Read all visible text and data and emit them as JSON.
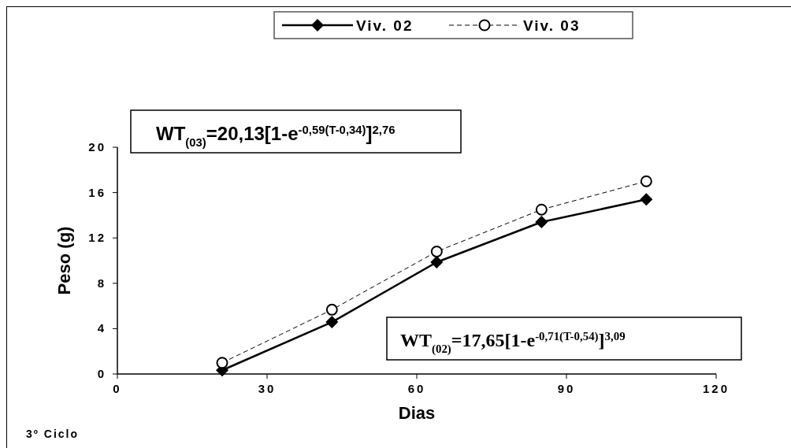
{
  "chart_data": {
    "type": "line",
    "xlabel": "Dias",
    "ylabel": "Peso (g)",
    "x": [
      21,
      43,
      64,
      85,
      106
    ],
    "series": [
      {
        "name": "Viv. 02",
        "color": "#000000",
        "values": [
          0.33,
          4.58,
          9.86,
          13.4,
          15.4
        ],
        "marker": "diamond",
        "line_style": "solid"
      },
      {
        "name": "Viv. 03",
        "color": "#000000",
        "values": [
          0.99,
          5.67,
          10.8,
          14.5,
          17.0
        ],
        "marker": "circle",
        "line_style": "dashed"
      }
    ],
    "xlim": [
      0,
      120
    ],
    "xticks": [
      0,
      30,
      60,
      90,
      120
    ],
    "ylim": [
      0,
      20
    ],
    "yticks": [
      0,
      4,
      8,
      12,
      16,
      20
    ],
    "grid": false,
    "legend": "top",
    "annotations": [
      "WT$_{(03)}$=20,13[1-e$^{-0,59(T-0,34)}$]$^{2,76}$",
      "WT$_{(02)}$=17,65[1-e$^{-0,71(T-0,54)}$]$^{3,09}$",
      "3º Ciclo"
    ]
  }
}
